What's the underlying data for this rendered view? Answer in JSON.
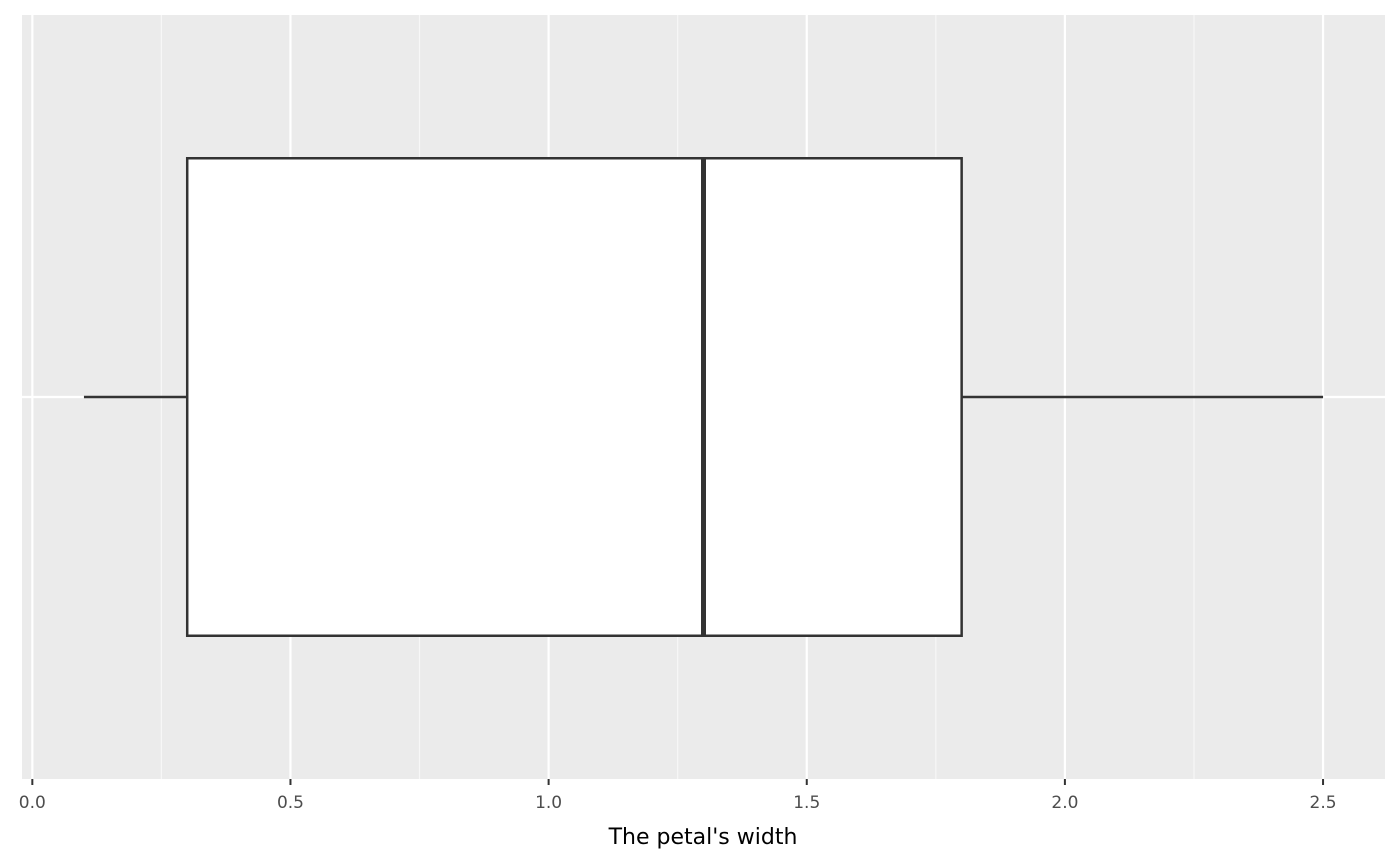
{
  "chart_data": {
    "type": "boxplot",
    "orientation": "horizontal",
    "title": "",
    "xlabel": "The petal's width",
    "ylabel": "",
    "xlim": [
      -0.02,
      2.62
    ],
    "x_ticks": [
      0.0,
      0.5,
      1.0,
      1.5,
      2.0,
      2.5
    ],
    "x_tick_labels": [
      "0.0",
      "0.5",
      "1.0",
      "1.5",
      "2.0",
      "2.5"
    ],
    "grid": true,
    "box": {
      "whisker_low": 0.1,
      "q1": 0.3,
      "median": 1.3,
      "q3": 1.8,
      "whisker_high": 2.5
    },
    "colors": {
      "panel_background": "#ebebeb",
      "grid_major": "#ffffff",
      "grid_minor": "#f7f7f7",
      "box_fill": "#ffffff",
      "box_line": "#333333"
    }
  }
}
